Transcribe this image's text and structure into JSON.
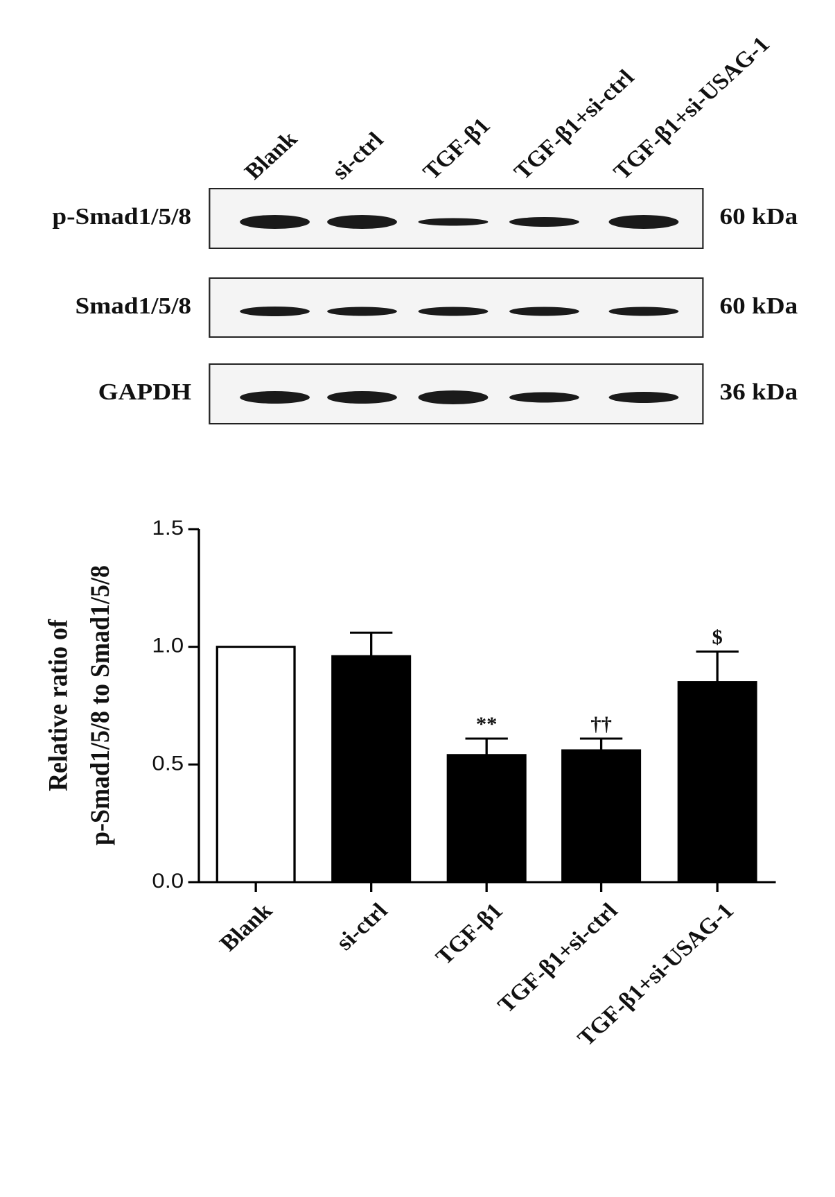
{
  "blot": {
    "lanes": [
      "Blank",
      "si-ctrl",
      "TGF-β1",
      "TGF-β1+si-ctrl",
      "TGF-β1+si-USAG-1"
    ],
    "rows": [
      {
        "label": "p-Smad1/5/8",
        "size": "60 kDa"
      },
      {
        "label": "Smad1/5/8",
        "size": "60 kDa"
      },
      {
        "label": "GAPDH",
        "size": "36 kDa"
      }
    ]
  },
  "chart_data": {
    "type": "bar",
    "y_label": [
      "Relative ratio of",
      "p-Smad1/5/8 to Smad1/5/8"
    ],
    "categories": [
      "Blank",
      "si-ctrl",
      "TGF-β1",
      "TGF-β1+si-ctrl",
      "TGF-β1+si-USAG-1"
    ],
    "values": [
      1.0,
      0.96,
      0.54,
      0.56,
      0.85
    ],
    "errors": [
      null,
      0.1,
      0.07,
      0.05,
      0.13
    ],
    "annotations": [
      null,
      null,
      "**",
      "††",
      "$"
    ],
    "colors": [
      "#ffffff",
      "#000000",
      "#000000",
      "#000000",
      "#000000"
    ],
    "ylim": [
      0,
      1.5
    ],
    "yticks": [
      {
        "value": 0,
        "label": "0.0"
      },
      {
        "value": 0.5,
        "label": "0.5"
      },
      {
        "value": 1,
        "label": "1.0"
      },
      {
        "value": 1.5,
        "label": "1.5"
      }
    ]
  }
}
